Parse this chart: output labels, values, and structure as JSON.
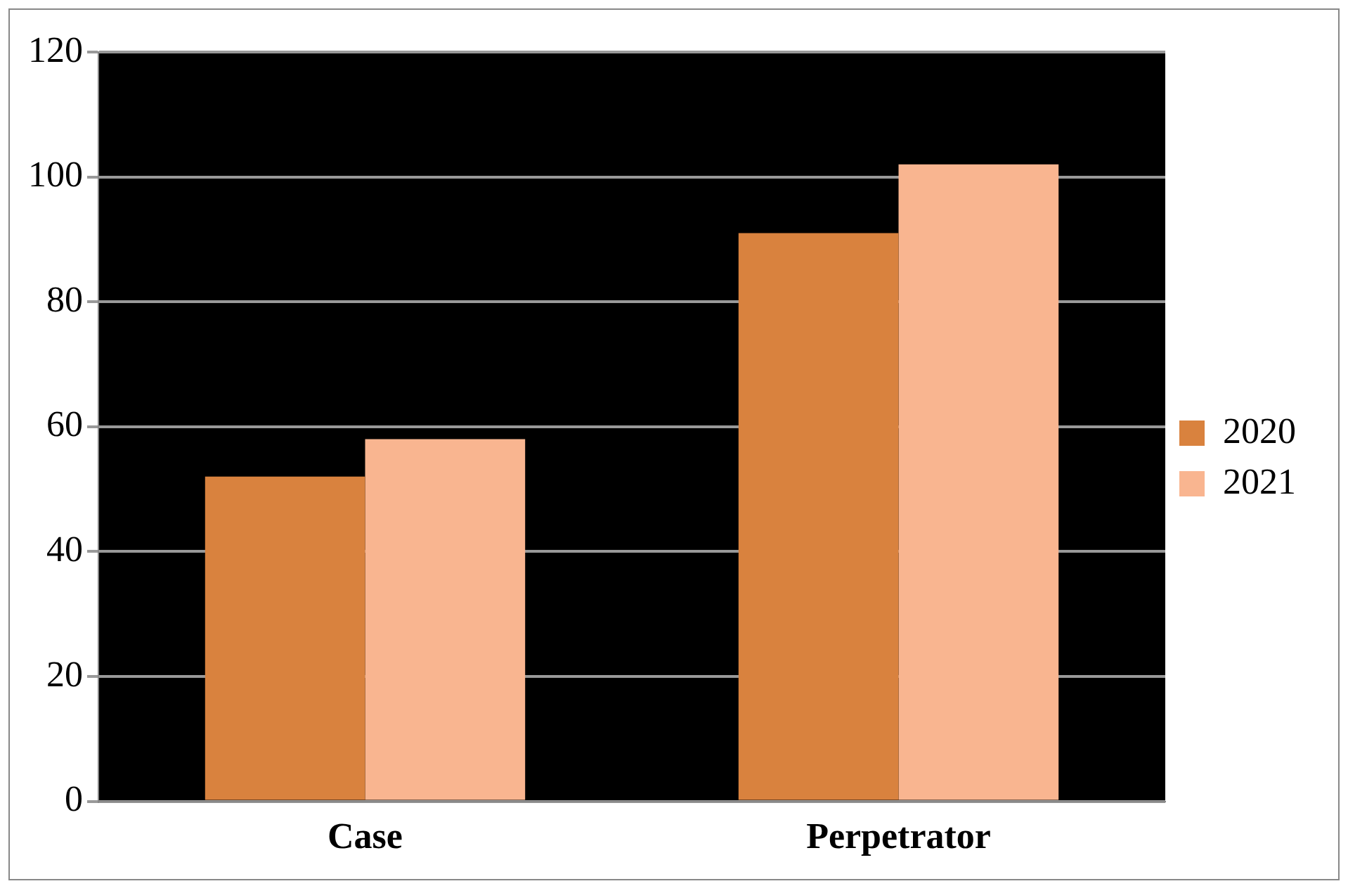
{
  "chart_data": {
    "type": "bar",
    "categories": [
      "Case",
      "Perpetrator"
    ],
    "series": [
      {
        "name": "2020",
        "color": "#d9823e",
        "values": [
          52,
          91
        ]
      },
      {
        "name": "2021",
        "color": "#f9b590",
        "values": [
          58,
          102
        ]
      }
    ],
    "ylim": [
      0,
      120
    ],
    "yticks": [
      0,
      20,
      40,
      60,
      80,
      100,
      120
    ],
    "grid": "y",
    "legend": "right"
  }
}
